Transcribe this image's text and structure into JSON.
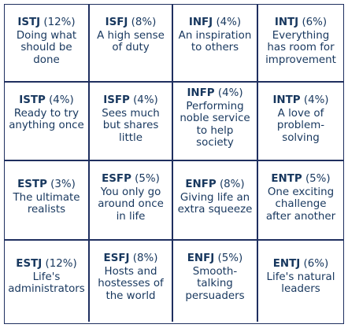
{
  "cells": [
    {
      "type": "ISTJ",
      "pct": "(12%)",
      "desc": "Doing what\nshould be\ndone"
    },
    {
      "type": "ISFJ",
      "pct": "(8%)",
      "desc": "A high sense\nof duty"
    },
    {
      "type": "INFJ",
      "pct": "(4%)",
      "desc": "An inspiration\nto others"
    },
    {
      "type": "INTJ",
      "pct": "(6%)",
      "desc": "Everything\nhas room for\nimprovement"
    },
    {
      "type": "ISTP",
      "pct": "(4%)",
      "desc": "Ready to try\nanything once"
    },
    {
      "type": "ISFP",
      "pct": "(4%)",
      "desc": "Sees much\nbut shares\nlittle"
    },
    {
      "type": "INFP",
      "pct": "(4%)",
      "desc": "Performing\nnoble service\nto help\nsociety"
    },
    {
      "type": "INTP",
      "pct": "(4%)",
      "desc": "A love of\nproblem-\nsolving"
    },
    {
      "type": "ESTP",
      "pct": "(3%)",
      "desc": "The ultimate\nrealists"
    },
    {
      "type": "ESFP",
      "pct": "(5%)",
      "desc": "You only go\naround once\nin life"
    },
    {
      "type": "ENFP",
      "pct": "(8%)",
      "desc": "Giving life an\nextra squeeze"
    },
    {
      "type": "ENTP",
      "pct": "(5%)",
      "desc": "One exciting\nchallenge\nafter another"
    },
    {
      "type": "ESTJ",
      "pct": "(12%)",
      "desc": "Life's\nadministrators"
    },
    {
      "type": "ESFJ",
      "pct": "(8%)",
      "desc": "Hosts and\nhostesses of\nthe world"
    },
    {
      "type": "ENFJ",
      "pct": "(5%)",
      "desc": "Smooth-\ntalking\npersuaders"
    },
    {
      "type": "ENTJ",
      "pct": "(6%)",
      "desc": "Life's natural\nleaders"
    }
  ]
}
